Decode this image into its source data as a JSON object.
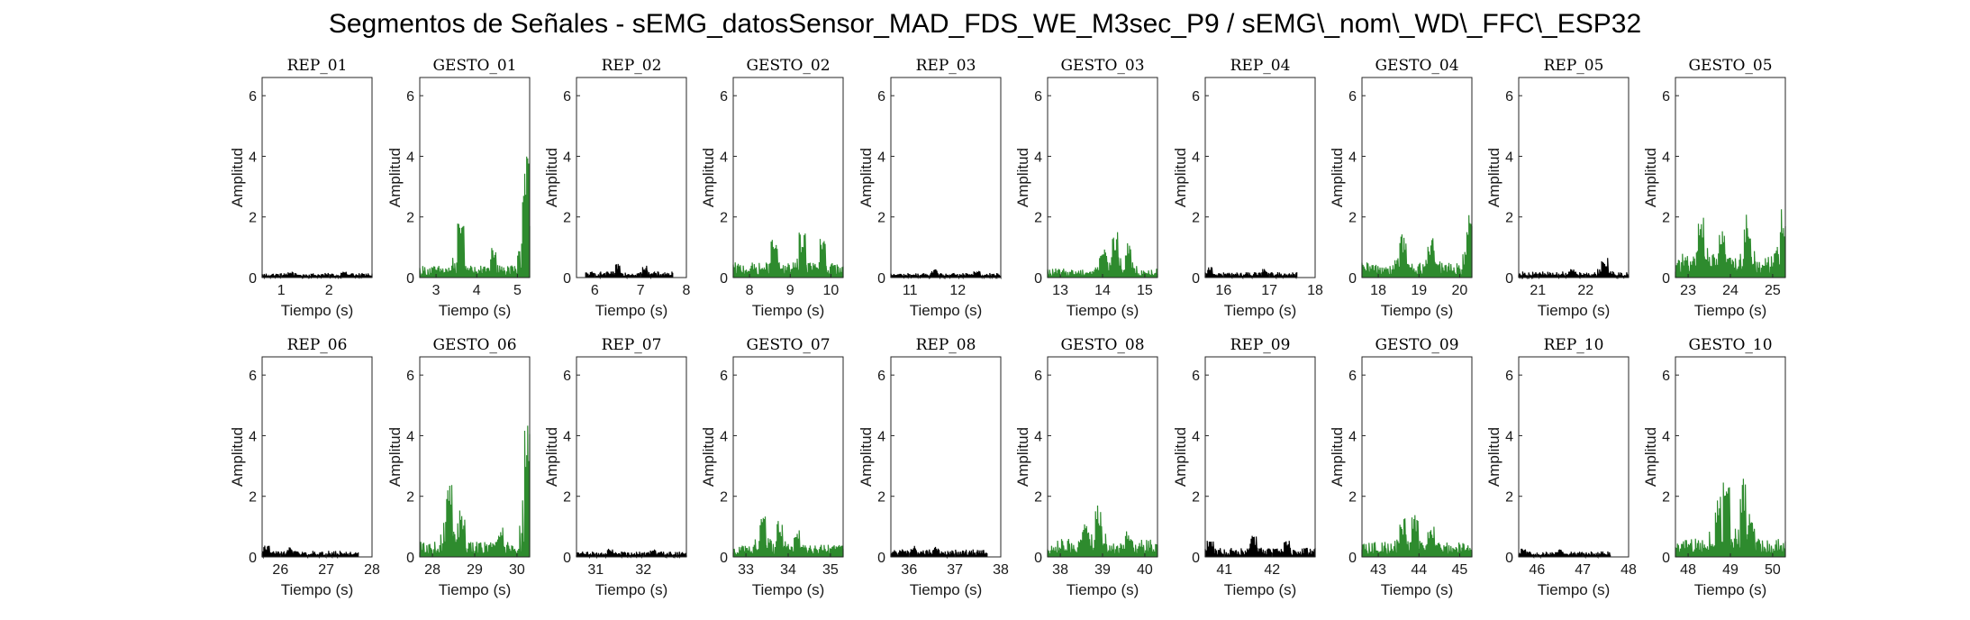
{
  "figure": {
    "title": "Segmentos de Señales - sEMG_datosSensor_MAD_FDS_WE_M3sec_P9 / sEMG\\_nom\\_WD\\_FFC\\_ESP32"
  },
  "colors": {
    "rep": "#000000",
    "gesto": "#2e8b2e",
    "axis": "#262626",
    "background": "#ffffff"
  },
  "chart_data": [
    {
      "type": "line",
      "title": "REP_01",
      "xlabel": "Tiempo (s)",
      "ylabel": "Amplitud",
      "xlim": [
        0.6,
        2.9
      ],
      "ylim": [
        0,
        6.6
      ],
      "xticks": [
        1,
        2
      ],
      "yticks": [
        0,
        2,
        4,
        6
      ],
      "class": "rep",
      "series": [
        {
          "x_range": [
            0.6,
            2.9
          ],
          "peaks": [
            [
              1.2,
              0.2
            ],
            [
              2.3,
              0.22
            ]
          ],
          "base": 0.15
        }
      ]
    },
    {
      "type": "line",
      "title": "GESTO_01",
      "xlabel": "Tiempo (s)",
      "ylabel": "Amplitud",
      "xlim": [
        2.6,
        5.3
      ],
      "ylim": [
        0,
        6.6
      ],
      "xticks": [
        3,
        4,
        5
      ],
      "yticks": [
        0,
        2,
        4,
        6
      ],
      "class": "gesto",
      "series": [
        {
          "x_range": [
            2.6,
            5.3
          ],
          "peaks": [
            [
              3.6,
              1.8
            ],
            [
              4.4,
              1.0
            ],
            [
              5.2,
              4.0
            ],
            [
              5.25,
              2.2
            ]
          ],
          "base": 0.4
        }
      ]
    },
    {
      "type": "line",
      "title": "REP_02",
      "xlabel": "Tiempo (s)",
      "ylabel": "Amplitud",
      "xlim": [
        5.6,
        8.0
      ],
      "ylim": [
        0,
        6.6
      ],
      "xticks": [
        6,
        7,
        8
      ],
      "yticks": [
        0,
        2,
        4,
        6
      ],
      "class": "rep",
      "series": [
        {
          "x_range": [
            5.8,
            7.7
          ],
          "peaks": [
            [
              6.5,
              0.45
            ],
            [
              7.1,
              0.4
            ]
          ],
          "base": 0.2
        }
      ]
    },
    {
      "type": "line",
      "title": "GESTO_02",
      "xlabel": "Tiempo (s)",
      "ylabel": "Amplitud",
      "xlim": [
        7.6,
        10.3
      ],
      "ylim": [
        0,
        6.6
      ],
      "xticks": [
        8,
        9,
        10
      ],
      "yticks": [
        0,
        2,
        4,
        6
      ],
      "class": "gesto",
      "series": [
        {
          "x_range": [
            7.6,
            10.3
          ],
          "peaks": [
            [
              8.6,
              1.3
            ],
            [
              9.3,
              1.5
            ],
            [
              9.8,
              1.3
            ]
          ],
          "base": 0.5
        }
      ]
    },
    {
      "type": "line",
      "title": "REP_03",
      "xlabel": "Tiempo (s)",
      "ylabel": "Amplitud",
      "xlim": [
        10.6,
        12.9
      ],
      "ylim": [
        0,
        6.6
      ],
      "xticks": [
        11,
        12
      ],
      "yticks": [
        0,
        2,
        4,
        6
      ],
      "class": "rep",
      "series": [
        {
          "x_range": [
            10.6,
            12.9
          ],
          "peaks": [
            [
              11.5,
              0.28
            ],
            [
              12.4,
              0.25
            ]
          ],
          "base": 0.15
        }
      ]
    },
    {
      "type": "line",
      "title": "GESTO_03",
      "xlabel": "Tiempo (s)",
      "ylabel": "Amplitud",
      "xlim": [
        12.7,
        15.3
      ],
      "ylim": [
        0,
        6.6
      ],
      "xticks": [
        13,
        14,
        15
      ],
      "yticks": [
        0,
        2,
        4,
        6
      ],
      "class": "gesto",
      "series": [
        {
          "x_range": [
            12.7,
            15.3
          ],
          "peaks": [
            [
              14.0,
              1.0
            ],
            [
              14.3,
              1.6
            ],
            [
              14.6,
              1.2
            ]
          ],
          "base": 0.3
        }
      ]
    },
    {
      "type": "line",
      "title": "REP_04",
      "xlabel": "Tiempo (s)",
      "ylabel": "Amplitud",
      "xlim": [
        15.6,
        18.0
      ],
      "ylim": [
        0,
        6.6
      ],
      "xticks": [
        16,
        17,
        18
      ],
      "yticks": [
        0,
        2,
        4,
        6
      ],
      "class": "rep",
      "series": [
        {
          "x_range": [
            15.6,
            17.6
          ],
          "peaks": [
            [
              15.7,
              0.35
            ],
            [
              16.9,
              0.3
            ]
          ],
          "base": 0.18
        }
      ]
    },
    {
      "type": "line",
      "title": "GESTO_04",
      "xlabel": "Tiempo (s)",
      "ylabel": "Amplitud",
      "xlim": [
        17.6,
        20.3
      ],
      "ylim": [
        0,
        6.6
      ],
      "xticks": [
        18,
        19,
        20
      ],
      "yticks": [
        0,
        2,
        4,
        6
      ],
      "class": "gesto",
      "series": [
        {
          "x_range": [
            17.6,
            20.3
          ],
          "peaks": [
            [
              18.6,
              1.5
            ],
            [
              19.3,
              1.3
            ],
            [
              20.25,
              2.1
            ]
          ],
          "base": 0.5
        }
      ]
    },
    {
      "type": "line",
      "title": "REP_05",
      "xlabel": "Tiempo (s)",
      "ylabel": "Amplitud",
      "xlim": [
        20.6,
        22.9
      ],
      "ylim": [
        0,
        6.6
      ],
      "xticks": [
        21,
        22
      ],
      "yticks": [
        0,
        2,
        4,
        6
      ],
      "class": "rep",
      "series": [
        {
          "x_range": [
            20.6,
            22.9
          ],
          "peaks": [
            [
              22.4,
              0.65
            ],
            [
              21.7,
              0.3
            ]
          ],
          "base": 0.2
        }
      ]
    },
    {
      "type": "line",
      "title": "GESTO_05",
      "xlabel": "Tiempo (s)",
      "ylabel": "Amplitud",
      "xlim": [
        22.7,
        25.3
      ],
      "ylim": [
        0,
        6.6
      ],
      "xticks": [
        23,
        24,
        25
      ],
      "yticks": [
        0,
        2,
        4,
        6
      ],
      "class": "gesto",
      "series": [
        {
          "x_range": [
            22.7,
            25.3
          ],
          "peaks": [
            [
              23.3,
              2.4
            ],
            [
              23.8,
              1.8
            ],
            [
              24.4,
              2.1
            ],
            [
              25.25,
              2.3
            ]
          ],
          "base": 0.8
        }
      ]
    },
    {
      "type": "line",
      "title": "REP_06",
      "xlabel": "Tiempo (s)",
      "ylabel": "Amplitud",
      "xlim": [
        25.6,
        28.0
      ],
      "ylim": [
        0,
        6.6
      ],
      "xticks": [
        26,
        27,
        28
      ],
      "yticks": [
        0,
        2,
        4,
        6
      ],
      "class": "rep",
      "series": [
        {
          "x_range": [
            25.6,
            27.7
          ],
          "peaks": [
            [
              25.7,
              0.4
            ],
            [
              26.2,
              0.35
            ]
          ],
          "base": 0.2
        }
      ]
    },
    {
      "type": "line",
      "title": "GESTO_06",
      "xlabel": "Tiempo (s)",
      "ylabel": "Amplitud",
      "xlim": [
        27.7,
        30.3
      ],
      "ylim": [
        0,
        6.6
      ],
      "xticks": [
        28,
        29,
        30
      ],
      "yticks": [
        0,
        2,
        4,
        6
      ],
      "class": "gesto",
      "series": [
        {
          "x_range": [
            27.7,
            30.3
          ],
          "peaks": [
            [
              28.4,
              2.7
            ],
            [
              28.7,
              1.6
            ],
            [
              29.6,
              1.0
            ],
            [
              30.25,
              4.4
            ]
          ],
          "base": 0.5
        }
      ]
    },
    {
      "type": "line",
      "title": "REP_07",
      "xlabel": "Tiempo (s)",
      "ylabel": "Amplitud",
      "xlim": [
        30.6,
        32.9
      ],
      "ylim": [
        0,
        6.6
      ],
      "xticks": [
        31,
        32
      ],
      "yticks": [
        0,
        2,
        4,
        6
      ],
      "class": "rep",
      "series": [
        {
          "x_range": [
            30.6,
            32.9
          ],
          "peaks": [
            [
              31.3,
              0.3
            ],
            [
              32.2,
              0.28
            ]
          ],
          "base": 0.18
        }
      ]
    },
    {
      "type": "line",
      "title": "GESTO_07",
      "xlabel": "Tiempo (s)",
      "ylabel": "Amplitud",
      "xlim": [
        32.7,
        35.3
      ],
      "ylim": [
        0,
        6.6
      ],
      "xticks": [
        33,
        34,
        35
      ],
      "yticks": [
        0,
        2,
        4,
        6
      ],
      "class": "gesto",
      "series": [
        {
          "x_range": [
            32.7,
            35.3
          ],
          "peaks": [
            [
              33.4,
              1.4
            ],
            [
              33.8,
              1.2
            ],
            [
              34.2,
              0.9
            ]
          ],
          "base": 0.4
        }
      ]
    },
    {
      "type": "line",
      "title": "REP_08",
      "xlabel": "Tiempo (s)",
      "ylabel": "Amplitud",
      "xlim": [
        35.6,
        38.0
      ],
      "ylim": [
        0,
        6.6
      ],
      "xticks": [
        36,
        37,
        38
      ],
      "yticks": [
        0,
        2,
        4,
        6
      ],
      "class": "rep",
      "series": [
        {
          "x_range": [
            35.6,
            37.7
          ],
          "peaks": [
            [
              36.1,
              0.4
            ],
            [
              36.6,
              0.35
            ]
          ],
          "base": 0.25
        }
      ]
    },
    {
      "type": "line",
      "title": "GESTO_08",
      "xlabel": "Tiempo (s)",
      "ylabel": "Amplitud",
      "xlim": [
        37.7,
        40.3
      ],
      "ylim": [
        0,
        6.6
      ],
      "xticks": [
        38,
        39,
        40
      ],
      "yticks": [
        0,
        2,
        4,
        6
      ],
      "class": "gesto",
      "series": [
        {
          "x_range": [
            37.7,
            40.3
          ],
          "peaks": [
            [
              38.6,
              1.2
            ],
            [
              38.9,
              1.7
            ],
            [
              39.6,
              0.9
            ]
          ],
          "base": 0.6
        }
      ]
    },
    {
      "type": "line",
      "title": "REP_09",
      "xlabel": "Tiempo (s)",
      "ylabel": "Amplitud",
      "xlim": [
        40.6,
        42.9
      ],
      "ylim": [
        0,
        6.6
      ],
      "xticks": [
        41,
        42
      ],
      "yticks": [
        0,
        2,
        4,
        6
      ],
      "class": "rep",
      "series": [
        {
          "x_range": [
            40.6,
            42.9
          ],
          "peaks": [
            [
              40.7,
              0.6
            ],
            [
              41.6,
              0.7
            ],
            [
              42.3,
              0.55
            ]
          ],
          "base": 0.3
        }
      ]
    },
    {
      "type": "line",
      "title": "GESTO_09",
      "xlabel": "Tiempo (s)",
      "ylabel": "Amplitud",
      "xlim": [
        42.6,
        45.3
      ],
      "ylim": [
        0,
        6.6
      ],
      "xticks": [
        43,
        44,
        45
      ],
      "yticks": [
        0,
        2,
        4,
        6
      ],
      "class": "gesto",
      "series": [
        {
          "x_range": [
            42.6,
            45.3
          ],
          "peaks": [
            [
              43.6,
              1.3
            ],
            [
              43.9,
              1.4
            ],
            [
              44.3,
              1.0
            ]
          ],
          "base": 0.5
        }
      ]
    },
    {
      "type": "line",
      "title": "REP_10",
      "xlabel": "Tiempo (s)",
      "ylabel": "Amplitud",
      "xlim": [
        45.6,
        48.0
      ],
      "ylim": [
        0,
        6.6
      ],
      "xticks": [
        46,
        47,
        48
      ],
      "yticks": [
        0,
        2,
        4,
        6
      ],
      "class": "rep",
      "series": [
        {
          "x_range": [
            45.6,
            47.6
          ],
          "peaks": [
            [
              45.7,
              0.3
            ],
            [
              46.5,
              0.25
            ]
          ],
          "base": 0.18
        }
      ]
    },
    {
      "type": "line",
      "title": "GESTO_10",
      "xlabel": "Tiempo (s)",
      "ylabel": "Amplitud",
      "xlim": [
        47.7,
        50.3
      ],
      "ylim": [
        0,
        6.6
      ],
      "xticks": [
        48,
        49,
        50
      ],
      "yticks": [
        0,
        2,
        4,
        6
      ],
      "class": "gesto",
      "series": [
        {
          "x_range": [
            47.7,
            50.3
          ],
          "peaks": [
            [
              48.7,
              2.0
            ],
            [
              48.9,
              2.6
            ],
            [
              49.3,
              2.6
            ],
            [
              49.5,
              1.5
            ]
          ],
          "base": 0.6
        }
      ]
    }
  ]
}
